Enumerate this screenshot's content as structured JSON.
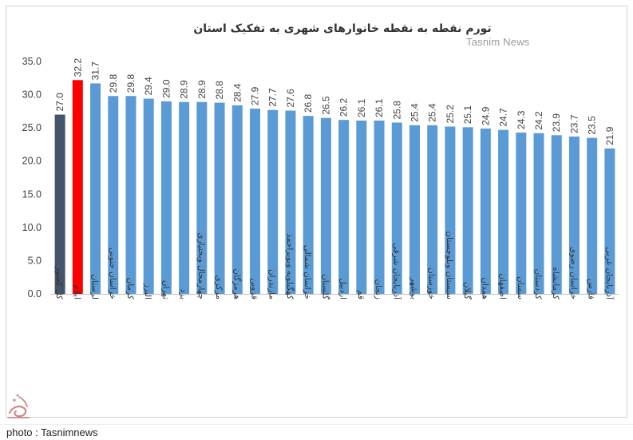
{
  "watermark": "Tasnim News",
  "credit": "photo : Tasnimnews",
  "logo_icon": "tasnim-calligraphy-logo",
  "chart_data": {
    "type": "bar",
    "title": "تورم نقطه به نقطه خانوارهای شهری به تفکیک استان",
    "xlabel": "",
    "ylabel": "",
    "ylim": [
      0,
      35
    ],
    "yticks": [
      "0.0",
      "5.0",
      "10.0",
      "15.0",
      "20.0",
      "25.0",
      "30.0",
      "35.0"
    ],
    "grid": false,
    "legend": "none",
    "categories": [
      "کل کشور",
      "ایلام",
      "لرستان",
      "خراسان جنوبی",
      "کرمان",
      "البرز",
      "تهران",
      "یزد",
      "چهارمحال وبختیاری",
      "مرکزی",
      "هرمزگان",
      "قزوین",
      "مازندران",
      "کهگیلویه وبویراحمد",
      "خراسان شمالی",
      "گلستان",
      "اردبیل",
      "قم",
      "زنجان",
      "آذربایجان شرقی",
      "بوشهر",
      "خوزستان",
      "سیستان وبلوچستان",
      "گیلان",
      "همدان",
      "اصفهان",
      "سمنان",
      "کردستان",
      "کرمانشاه",
      "خراسان رضوی",
      "فارس",
      "آذربایجان غربی"
    ],
    "values": [
      27.0,
      32.2,
      31.7,
      29.8,
      29.8,
      29.4,
      29.0,
      28.9,
      28.9,
      28.8,
      28.4,
      27.9,
      27.7,
      27.6,
      26.8,
      26.5,
      26.2,
      26.1,
      26.1,
      25.8,
      25.4,
      25.4,
      25.2,
      25.1,
      24.9,
      24.7,
      24.3,
      24.2,
      23.9,
      23.7,
      23.5,
      21.9
    ],
    "value_labels": [
      "27.0",
      "32.2",
      "31.7",
      "29.8",
      "29.8",
      "29.4",
      "29.0",
      "28.9",
      "28.9",
      "28.8",
      "28.4",
      "27.9",
      "27.7",
      "27.6",
      "26.8",
      "26.5",
      "26.2",
      "26.1",
      "26.1",
      "25.8",
      "25.4",
      "25.4",
      "25.2",
      "25.1",
      "24.9",
      "24.7",
      "24.3",
      "24.2",
      "23.9",
      "23.7",
      "23.5",
      "21.9"
    ],
    "colors": {
      "default": "#5b9bd5",
      "national": "#44546a",
      "highlight": "#ff0000",
      "axis": "#bfbfbf"
    },
    "bar_colors": [
      "national",
      "highlight",
      "default",
      "default",
      "default",
      "default",
      "default",
      "default",
      "default",
      "default",
      "default",
      "default",
      "default",
      "default",
      "default",
      "default",
      "default",
      "default",
      "default",
      "default",
      "default",
      "default",
      "default",
      "default",
      "default",
      "default",
      "default",
      "default",
      "default",
      "default",
      "default",
      "default"
    ]
  }
}
